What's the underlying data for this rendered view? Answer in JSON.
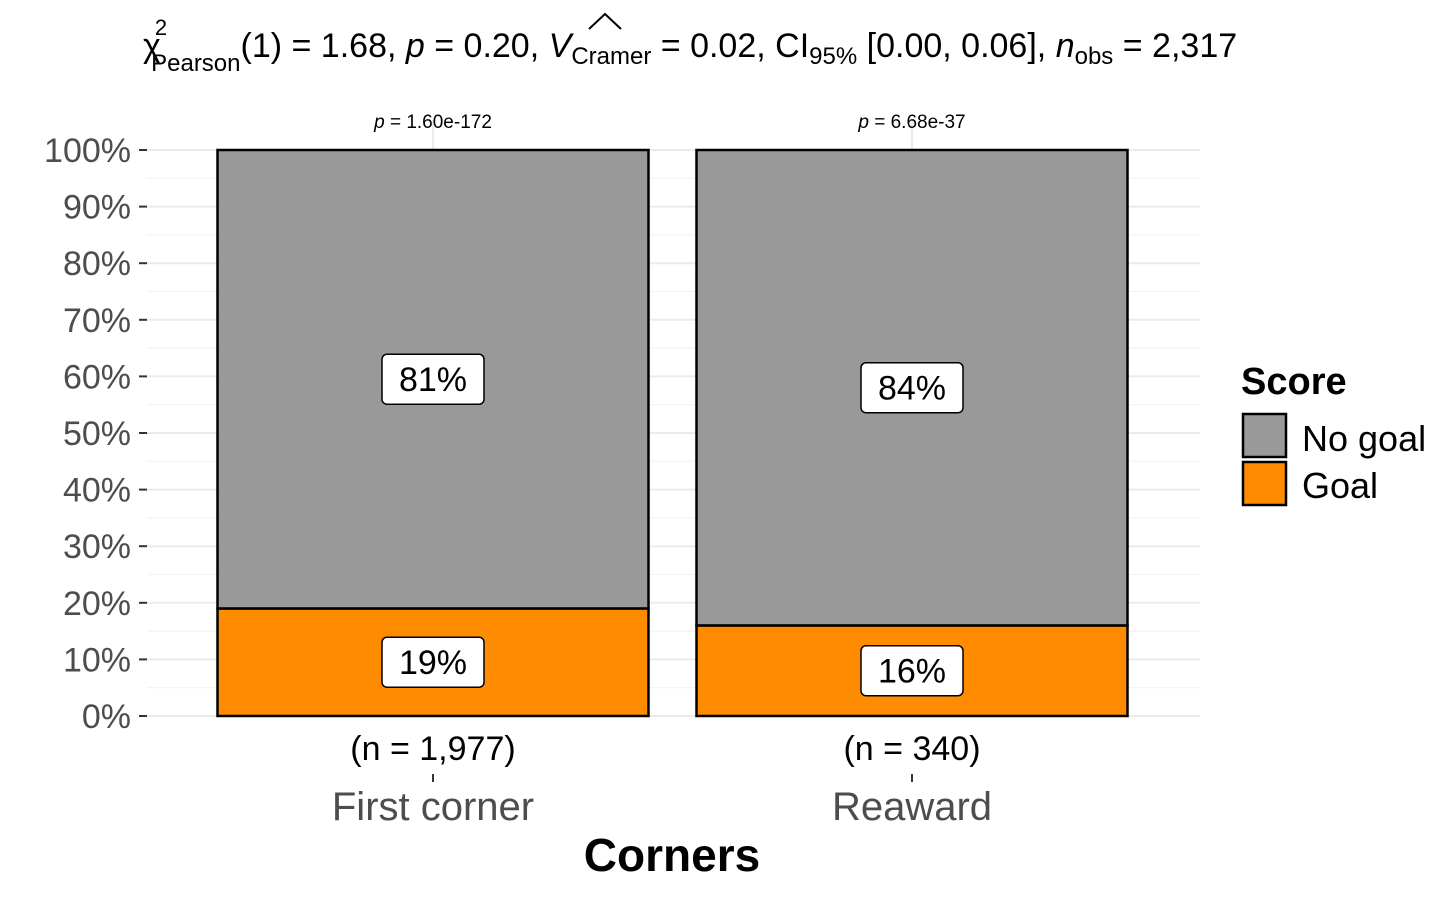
{
  "chart_data": {
    "type": "bar",
    "stacked": true,
    "title_parts": {
      "chi": "χ",
      "chi_sup": "2",
      "chi_sub": "Pearson",
      "df": "(1) = 1.68, ",
      "p_sym": "p",
      "p_val": " = 0.20, ",
      "v_sym": "V",
      "v_sub": "Cramer",
      "v_val": " = 0.02, CI",
      "ci_sub": "95%",
      "ci_val": " [0.00, 0.06], ",
      "n_sym": "n",
      "n_sub": "obs",
      "n_val": " = 2,317"
    },
    "xlabel": "Corners",
    "ylabel": "",
    "ylim": [
      0,
      100
    ],
    "y_ticks": [
      "0%",
      "10%",
      "20%",
      "30%",
      "40%",
      "50%",
      "60%",
      "70%",
      "80%",
      "90%",
      "100%"
    ],
    "categories": [
      "First corner",
      "Reaward"
    ],
    "n_labels": [
      "(n = 1,977)",
      "(n = 340)"
    ],
    "p_labels": [
      {
        "sym": "p",
        "val": " = 1.60e-172"
      },
      {
        "sym": "p",
        "val": " = 6.68e-37"
      }
    ],
    "series": [
      {
        "name": "Goal",
        "color": "#ff8c00",
        "values": [
          19,
          16
        ],
        "labels": [
          "19%",
          "16%"
        ]
      },
      {
        "name": "No goal",
        "color": "#999999",
        "values": [
          81,
          84
        ],
        "labels": [
          "81%",
          "84%"
        ]
      }
    ],
    "legend": {
      "title": "Score",
      "position": "right",
      "entries": [
        {
          "name": "No goal",
          "color": "#999999"
        },
        {
          "name": "Goal",
          "color": "#ff8c00"
        }
      ]
    },
    "grid": true
  }
}
